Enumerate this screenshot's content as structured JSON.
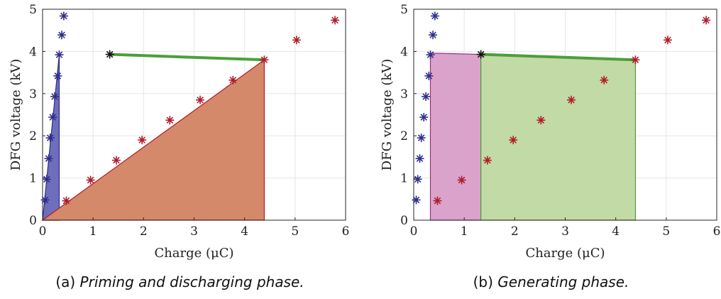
{
  "chart_data": [
    {
      "type": "scatter",
      "title": "",
      "xlabel": "Charge (μC)",
      "ylabel": "DFG voltage (kV)",
      "xlim": [
        0,
        6
      ],
      "ylim": [
        0,
        5
      ],
      "xticks": [
        "0",
        "1",
        "2",
        "3",
        "4",
        "5",
        "6"
      ],
      "yticks": [
        "0",
        "1",
        "2",
        "3",
        "4",
        "5"
      ],
      "grid": true,
      "caption": {
        "label": "(a)",
        "text": "Priming and discharging phase."
      },
      "series": [
        {
          "color": "#2e2e8c",
          "points": [
            [
              0.05,
              0.48
            ],
            [
              0.08,
              0.97
            ],
            [
              0.12,
              1.46
            ],
            [
              0.15,
              1.95
            ],
            [
              0.2,
              2.44
            ],
            [
              0.24,
              2.93
            ],
            [
              0.3,
              3.42
            ],
            [
              0.33,
              3.92
            ],
            [
              0.38,
              4.39
            ],
            [
              0.42,
              4.84
            ]
          ]
        },
        {
          "color": "#b01c2a",
          "points": [
            [
              0.47,
              0.46
            ],
            [
              0.95,
              0.95
            ],
            [
              1.46,
              1.42
            ],
            [
              1.97,
              1.9
            ],
            [
              2.52,
              2.37
            ],
            [
              3.12,
              2.85
            ],
            [
              3.77,
              3.32
            ],
            [
              4.39,
              3.8
            ],
            [
              5.03,
              4.27
            ],
            [
              5.79,
              4.74
            ]
          ]
        },
        {
          "color": "#111111",
          "points": [
            [
              1.33,
              3.93
            ]
          ]
        }
      ],
      "lines": [
        {
          "color": "#4d9e3a",
          "points": [
            [
              1.33,
              3.93
            ],
            [
              4.39,
              3.8
            ]
          ]
        }
      ],
      "areas": [
        {
          "fill": "#6e6ebd",
          "stroke": "#2e2e8c",
          "points": [
            [
              0,
              0
            ],
            [
              0.33,
              3.92
            ],
            [
              0.33,
              0
            ]
          ]
        },
        {
          "fill": "#d4896a",
          "stroke": "#b01c2a",
          "points": [
            [
              0,
              0
            ],
            [
              4.39,
              3.8
            ],
            [
              4.39,
              0
            ]
          ]
        }
      ]
    },
    {
      "type": "scatter",
      "title": "",
      "xlabel": "Charge (μC)",
      "ylabel": "DFG voltage (kV)",
      "xlim": [
        0,
        6
      ],
      "ylim": [
        0,
        5
      ],
      "xticks": [
        "0",
        "1",
        "2",
        "3",
        "4",
        "5",
        "6"
      ],
      "yticks": [
        "0",
        "1",
        "2",
        "3",
        "4",
        "5"
      ],
      "grid": true,
      "caption": {
        "label": "(b)",
        "text": "Generating phase."
      },
      "series": [
        {
          "color": "#2e2e8c",
          "points": [
            [
              0.05,
              0.48
            ],
            [
              0.08,
              0.97
            ],
            [
              0.12,
              1.46
            ],
            [
              0.15,
              1.95
            ],
            [
              0.2,
              2.44
            ],
            [
              0.24,
              2.93
            ],
            [
              0.3,
              3.42
            ],
            [
              0.33,
              3.92
            ],
            [
              0.38,
              4.39
            ],
            [
              0.42,
              4.84
            ]
          ]
        },
        {
          "color": "#b01c2a",
          "points": [
            [
              0.47,
              0.46
            ],
            [
              0.95,
              0.95
            ],
            [
              1.46,
              1.42
            ],
            [
              1.97,
              1.9
            ],
            [
              2.52,
              2.37
            ],
            [
              3.12,
              2.85
            ],
            [
              3.77,
              3.32
            ],
            [
              4.39,
              3.8
            ],
            [
              5.03,
              4.27
            ],
            [
              5.79,
              4.74
            ]
          ]
        },
        {
          "color": "#111111",
          "points": [
            [
              1.33,
              3.93
            ]
          ]
        }
      ],
      "lines": [
        {
          "color": "#4d9e3a",
          "points": [
            [
              1.33,
              3.93
            ],
            [
              4.39,
              3.8
            ]
          ]
        }
      ],
      "areas": [
        {
          "fill": "#d9a3cc",
          "stroke": "#a0307a",
          "points": [
            [
              0.33,
              0
            ],
            [
              0.33,
              3.96
            ],
            [
              1.33,
              3.93
            ],
            [
              1.33,
              0
            ]
          ]
        },
        {
          "fill": "#c2dba6",
          "stroke": "#4d9e3a",
          "points": [
            [
              1.33,
              0
            ],
            [
              1.33,
              3.93
            ],
            [
              4.39,
              3.8
            ],
            [
              4.39,
              0
            ]
          ]
        }
      ]
    }
  ]
}
